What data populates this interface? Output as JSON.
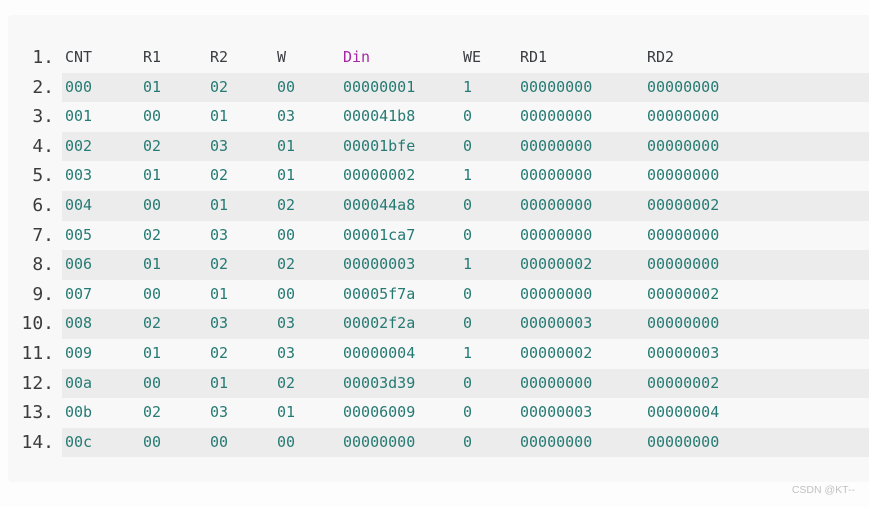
{
  "colors": {
    "page_background": "#fdfdfd",
    "block_background": "#f8f8f8",
    "stripe_background": "#ececec",
    "header_text": "#3a3d42",
    "header_accent_text": "#a626a4",
    "data_text": "#257a73",
    "line_number_text": "#3c3c3c",
    "watermark_text": "#c2c2c6"
  },
  "watermark": "CSDN @KT--",
  "table": {
    "header": {
      "line_number": "1.",
      "columns": [
        "CNT",
        "R1",
        "R2",
        "W",
        "Din",
        "WE",
        "RD1",
        "RD2"
      ],
      "accent_column_index": 4
    },
    "rows": [
      {
        "line_number": "2.",
        "striped": true,
        "cells": [
          "000",
          "01",
          "02",
          "00",
          "00000001",
          "1",
          "00000000",
          "00000000"
        ]
      },
      {
        "line_number": "3.",
        "striped": false,
        "cells": [
          "001",
          "00",
          "01",
          "03",
          "000041b8",
          "0",
          "00000000",
          "00000000"
        ]
      },
      {
        "line_number": "4.",
        "striped": true,
        "cells": [
          "002",
          "02",
          "03",
          "01",
          "00001bfe",
          "0",
          "00000000",
          "00000000"
        ]
      },
      {
        "line_number": "5.",
        "striped": false,
        "cells": [
          "003",
          "01",
          "02",
          "01",
          "00000002",
          "1",
          "00000000",
          "00000000"
        ]
      },
      {
        "line_number": "6.",
        "striped": true,
        "cells": [
          "004",
          "00",
          "01",
          "02",
          "000044a8",
          "0",
          "00000000",
          "00000002"
        ]
      },
      {
        "line_number": "7.",
        "striped": false,
        "cells": [
          "005",
          "02",
          "03",
          "00",
          "00001ca7",
          "0",
          "00000000",
          "00000000"
        ]
      },
      {
        "line_number": "8.",
        "striped": true,
        "cells": [
          "006",
          "01",
          "02",
          "02",
          "00000003",
          "1",
          "00000002",
          "00000000"
        ]
      },
      {
        "line_number": "9.",
        "striped": false,
        "cells": [
          "007",
          "00",
          "01",
          "00",
          "00005f7a",
          "0",
          "00000000",
          "00000002"
        ]
      },
      {
        "line_number": "10.",
        "striped": true,
        "cells": [
          "008",
          "02",
          "03",
          "03",
          "00002f2a",
          "0",
          "00000003",
          "00000000"
        ]
      },
      {
        "line_number": "11.",
        "striped": false,
        "cells": [
          "009",
          "01",
          "02",
          "03",
          "00000004",
          "1",
          "00000002",
          "00000003"
        ]
      },
      {
        "line_number": "12.",
        "striped": true,
        "cells": [
          "00a",
          "00",
          "01",
          "02",
          "00003d39",
          "0",
          "00000000",
          "00000002"
        ]
      },
      {
        "line_number": "13.",
        "striped": false,
        "cells": [
          "00b",
          "02",
          "03",
          "01",
          "00006009",
          "0",
          "00000003",
          "00000004"
        ]
      },
      {
        "line_number": "14.",
        "striped": true,
        "cells": [
          "00c",
          "00",
          "00",
          "00",
          "00000000",
          "0",
          "00000000",
          "00000000"
        ]
      }
    ]
  }
}
